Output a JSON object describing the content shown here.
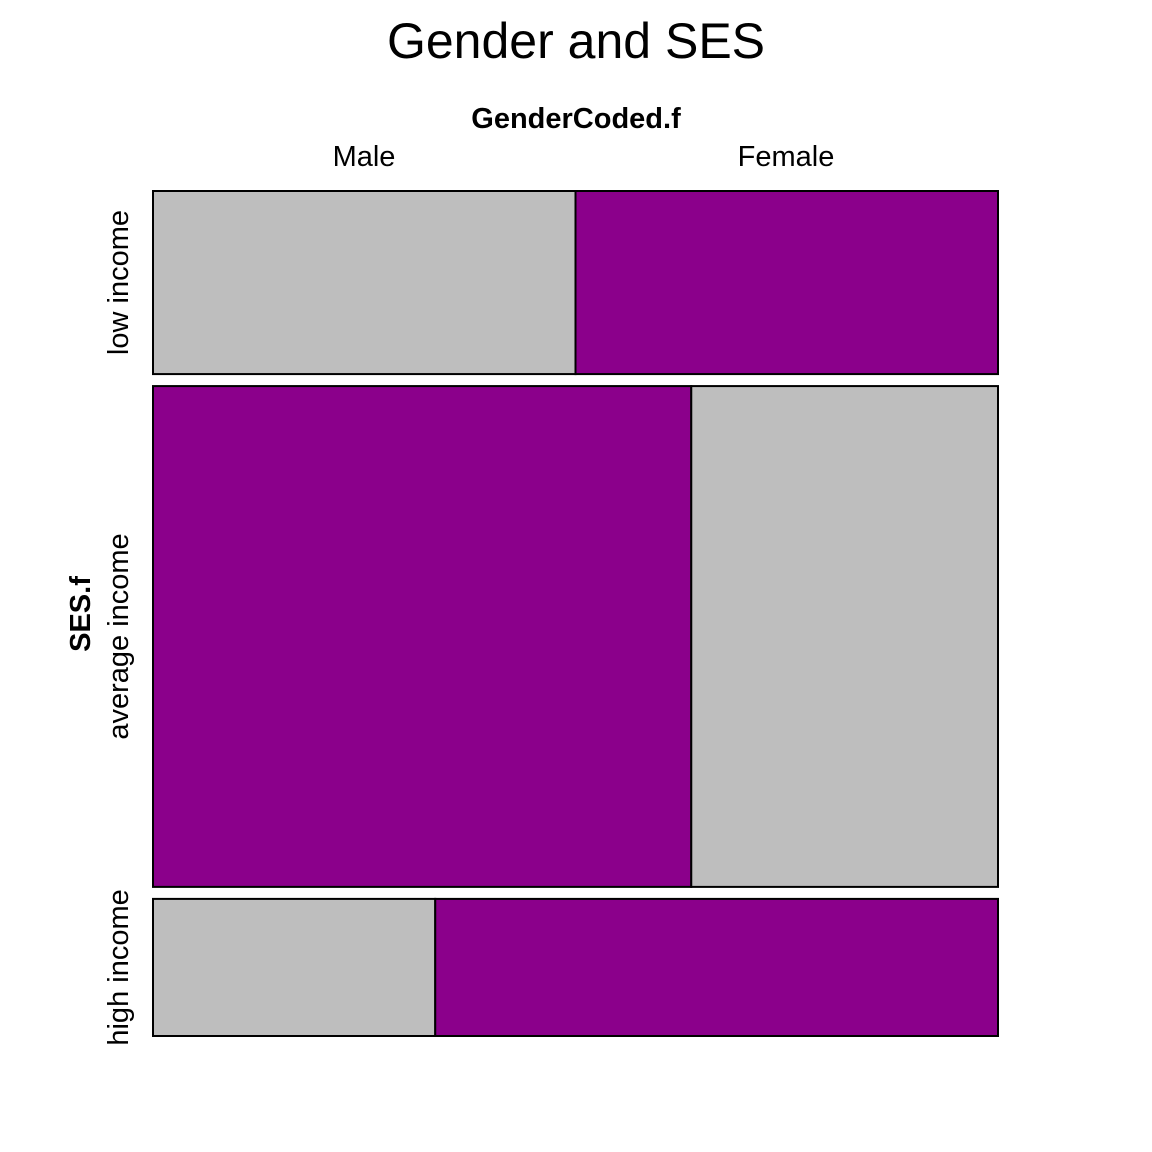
{
  "chart_data": {
    "type": "mosaic",
    "title": "Gender and SES",
    "xlabel": "GenderCoded.f",
    "ylabel": "SES.f",
    "x_categories": [
      "Male",
      "Female"
    ],
    "y_categories": [
      "low income",
      "average income",
      "high income"
    ],
    "row_proportions": [
      0.223,
      0.61,
      0.167
    ],
    "cells": [
      {
        "row": "low income",
        "proportions": [
          0.5,
          0.5
        ],
        "colors": [
          "#BEBEBE",
          "#8B008B"
        ]
      },
      {
        "row": "average income",
        "proportions": [
          0.637,
          0.363
        ],
        "colors": [
          "#8B008B",
          "#BEBEBE"
        ]
      },
      {
        "row": "high income",
        "proportions": [
          0.334,
          0.666
        ],
        "colors": [
          "#BEBEBE",
          "#8B008B"
        ]
      }
    ],
    "colors": {
      "grey": "#BEBEBE",
      "purple": "#8B008B"
    }
  }
}
